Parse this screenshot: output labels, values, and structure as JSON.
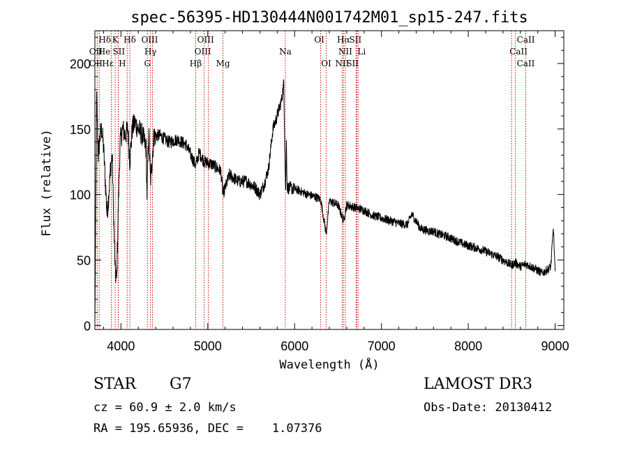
{
  "chart_data": {
    "type": "line",
    "title": "spec-56395-HD130444N001742M01_sp15-247.fits",
    "xlabel": "Wavelength (Å)",
    "ylabel": "Flux (relative)",
    "xlim": [
      3700,
      9100
    ],
    "ylim": [
      -3,
      225
    ],
    "x_ticks": [
      4000,
      5000,
      6000,
      7000,
      8000,
      9000
    ],
    "y_ticks": [
      0,
      50,
      100,
      150,
      200
    ],
    "grid": false,
    "series_color": "#000000",
    "line_color": "#cc0000",
    "spectrum_anchor_points": {
      "x": [
        3700,
        3720,
        3740,
        3760,
        3780,
        3800,
        3820,
        3840,
        3860,
        3880,
        3900,
        3920,
        3935,
        3950,
        3968,
        3990,
        4020,
        4050,
        4080,
        4102,
        4130,
        4160,
        4200,
        4250,
        4290,
        4300,
        4320,
        4340,
        4380,
        4450,
        4550,
        4650,
        4750,
        4861,
        4900,
        4960,
        5050,
        5150,
        5175,
        5250,
        5350,
        5450,
        5550,
        5600,
        5650,
        5700,
        5750,
        5790,
        5820,
        5850,
        5875,
        5889,
        5896,
        5905,
        5915,
        5950,
        6050,
        6150,
        6250,
        6300,
        6364,
        6400,
        6500,
        6563,
        6600,
        6700,
        6800,
        6900,
        7000,
        7100,
        7200,
        7300,
        7350,
        7450,
        7550,
        7600,
        7650,
        7750,
        7850,
        7950,
        8050,
        8150,
        8250,
        8350,
        8450,
        8498,
        8542,
        8600,
        8662,
        8750,
        8850,
        8900,
        8950,
        8980,
        9000
      ],
      "y": [
        0,
        175,
        130,
        145,
        150,
        135,
        110,
        85,
        100,
        120,
        130,
        70,
        40,
        35,
        85,
        140,
        150,
        145,
        150,
        125,
        150,
        155,
        150,
        145,
        135,
        100,
        148,
        110,
        145,
        145,
        140,
        142,
        138,
        122,
        132,
        125,
        123,
        118,
        100,
        115,
        110,
        110,
        105,
        100,
        108,
        120,
        150,
        158,
        165,
        172,
        185,
        130,
        100,
        140,
        105,
        105,
        103,
        100,
        98,
        96,
        70,
        95,
        92,
        80,
        92,
        90,
        88,
        84,
        82,
        80,
        78,
        77,
        85,
        74,
        72,
        72,
        70,
        68,
        65,
        62,
        60,
        58,
        55,
        52,
        48,
        46,
        48,
        45,
        47,
        44,
        40,
        42,
        45,
        75,
        40
      ]
    },
    "lines": [
      {
        "label": "Hδ",
        "x": 3750,
        "row": 0,
        "dx": 8
      },
      {
        "label": "K",
        "x": 3934,
        "row": 0,
        "dx": 0
      },
      {
        "label": "Hδ",
        "x": 4102,
        "row": 0,
        "dx": 0
      },
      {
        "label": "OIII",
        "x": 4363,
        "row": 0,
        "dx": -4
      },
      {
        "label": "OIII",
        "x": 4959,
        "row": 0,
        "dx": 2
      },
      {
        "label": "OI",
        "x": 6300,
        "row": 0,
        "dx": -2
      },
      {
        "label": "Hα",
        "x": 6563,
        "row": 0,
        "dx": 0
      },
      {
        "label": "SII",
        "x": 6716,
        "row": 0,
        "dx": -2
      },
      {
        "label": "CaII",
        "x": 8542,
        "row": 0,
        "dx": 15
      },
      {
        "label": "OII",
        "x": 3727,
        "row": 1,
        "dx": -2
      },
      {
        "label": "He",
        "x": 3889,
        "row": 1,
        "dx": -10
      },
      {
        "label": "SII",
        "x": 4072,
        "row": 1,
        "dx": -12
      },
      {
        "label": "Hγ",
        "x": 4340,
        "row": 1,
        "dx": 0
      },
      {
        "label": "OIII",
        "x": 5007,
        "row": 1,
        "dx": -8
      },
      {
        "label": "NII",
        "x": 6584,
        "row": 1,
        "dx": 0
      },
      {
        "label": "Li",
        "x": 6708,
        "row": 1,
        "dx": 8
      },
      {
        "label": "CaII",
        "x": 8498,
        "row": 1,
        "dx": 10
      },
      {
        "label": "OII",
        "x": 3727,
        "row": 2,
        "dx": -2
      },
      {
        "label": "Hε",
        "x": 3970,
        "row": 2,
        "dx": -15
      },
      {
        "label": "H",
        "x": 3968,
        "row": 2,
        "dx": 6
      },
      {
        "label": "G",
        "x": 4305,
        "row": 2,
        "dx": 0
      },
      {
        "label": "Hβ",
        "x": 4861,
        "row": 2,
        "dx": 0
      },
      {
        "label": "Mg",
        "x": 5175,
        "row": 2,
        "dx": 0
      },
      {
        "label": "Na",
        "x": 5893,
        "row": 1,
        "dx": 0
      },
      {
        "label": "OI",
        "x": 6364,
        "row": 2,
        "dx": 0
      },
      {
        "label": "NII",
        "x": 6548,
        "row": 2,
        "dx": 0
      },
      {
        "label": "SII",
        "x": 6731,
        "row": 2,
        "dx": -8
      },
      {
        "label": "CaII",
        "x": 8662,
        "row": 2,
        "dx": 0
      }
    ]
  },
  "footer": {
    "object_type": "STAR",
    "subclass": "G7",
    "survey": "LAMOST DR3",
    "redshift": "cz = 60.9 ± 2.0 km/s",
    "obs_date": "Obs-Date: 20130412",
    "coords": "RA = 195.65936, DEC =    1.07376"
  }
}
